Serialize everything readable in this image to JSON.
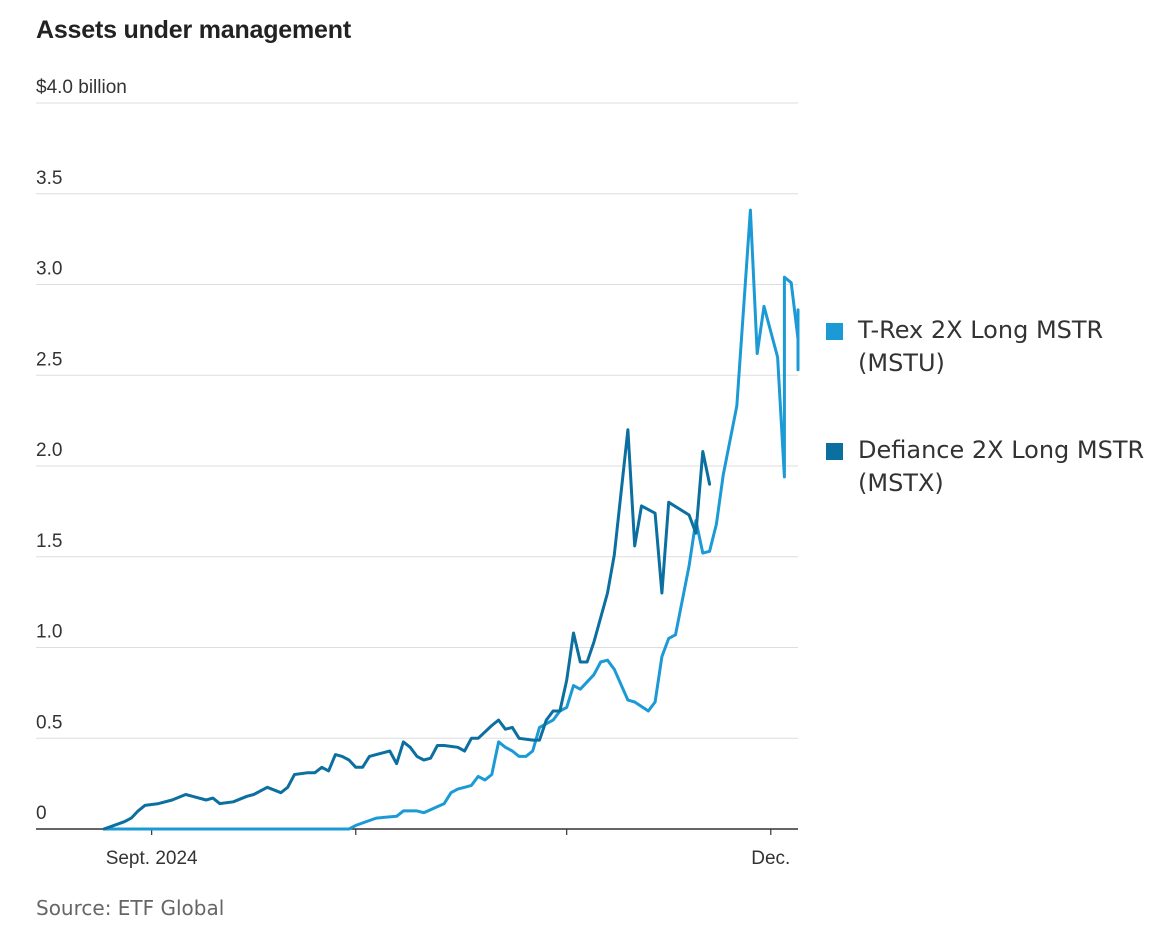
{
  "chart_data": {
    "type": "line",
    "title": "Assets under management",
    "xlabel": "",
    "ylabel": "",
    "ylim": [
      0,
      4.0
    ],
    "y_ticks": [
      {
        "value": 0,
        "label": "0"
      },
      {
        "value": 0.5,
        "label": "0.5"
      },
      {
        "value": 1.0,
        "label": "1.0"
      },
      {
        "value": 1.5,
        "label": "1.5"
      },
      {
        "value": 2.0,
        "label": "2.0"
      },
      {
        "value": 2.5,
        "label": "2.5"
      },
      {
        "value": 3.0,
        "label": "3.0"
      },
      {
        "value": 3.5,
        "label": "3.5"
      },
      {
        "value": 4.0,
        "label": "$4.0 billion"
      }
    ],
    "x_range": [
      "2024-08-15",
      "2024-12-05"
    ],
    "x_ticks": [
      {
        "date": "2024-09-01",
        "label": "Sept. 2024"
      },
      {
        "date": "2024-10-01",
        "label": ""
      },
      {
        "date": "2024-11-01",
        "label": ""
      },
      {
        "date": "2024-12-01",
        "label": "Dec."
      }
    ],
    "grid": true,
    "legend_position": "right",
    "source": "Source: ETF Global",
    "series": [
      {
        "name": "T-Rex 2X Long MSTR\n(MSTU)",
        "color": "#1b9ad6",
        "points": [
          [
            "2024-08-25",
            0
          ],
          [
            "2024-09-15",
            0
          ],
          [
            "2024-09-30",
            0
          ],
          [
            "2024-10-01",
            0.02
          ],
          [
            "2024-10-04",
            0.06
          ],
          [
            "2024-10-07",
            0.07
          ],
          [
            "2024-10-08",
            0.1
          ],
          [
            "2024-10-10",
            0.1
          ],
          [
            "2024-10-11",
            0.09
          ],
          [
            "2024-10-14",
            0.14
          ],
          [
            "2024-10-15",
            0.2
          ],
          [
            "2024-10-16",
            0.22
          ],
          [
            "2024-10-17",
            0.23
          ],
          [
            "2024-10-18",
            0.24
          ],
          [
            "2024-10-19",
            0.29
          ],
          [
            "2024-10-20",
            0.27
          ],
          [
            "2024-10-21",
            0.3
          ],
          [
            "2024-10-22",
            0.48
          ],
          [
            "2024-10-23",
            0.45
          ],
          [
            "2024-10-24",
            0.43
          ],
          [
            "2024-10-25",
            0.4
          ],
          [
            "2024-10-26",
            0.4
          ],
          [
            "2024-10-27",
            0.43
          ],
          [
            "2024-10-28",
            0.56
          ],
          [
            "2024-10-29",
            0.58
          ],
          [
            "2024-10-30",
            0.6
          ],
          [
            "2024-10-31",
            0.65
          ],
          [
            "2024-11-01",
            0.67
          ],
          [
            "2024-11-02",
            0.79
          ],
          [
            "2024-11-03",
            0.77
          ],
          [
            "2024-11-05",
            0.85
          ],
          [
            "2024-11-06",
            0.92
          ],
          [
            "2024-11-07",
            0.93
          ],
          [
            "2024-11-08",
            0.88
          ],
          [
            "2024-11-10",
            0.71
          ],
          [
            "2024-11-11",
            0.7
          ],
          [
            "2024-11-13",
            0.65
          ],
          [
            "2024-11-14",
            0.7
          ],
          [
            "2024-11-15",
            0.95
          ],
          [
            "2024-11-16",
            1.05
          ],
          [
            "2024-11-17",
            1.07
          ],
          [
            "2024-11-19",
            1.45
          ],
          [
            "2024-11-20",
            1.7
          ],
          [
            "2024-11-21",
            1.52
          ],
          [
            "2024-11-22",
            1.53
          ],
          [
            "2024-11-23",
            1.68
          ],
          [
            "2024-11-24",
            1.95
          ],
          [
            "2024-11-26",
            2.33
          ],
          [
            "2024-11-28",
            3.41
          ],
          [
            "2024-11-29",
            2.62
          ],
          [
            "2024-11-30",
            2.88
          ],
          [
            "2024-12-02",
            2.6
          ],
          [
            "2024-12-03",
            1.94
          ],
          [
            "2024-12-03",
            3.04
          ],
          [
            "2024-12-04",
            3.01
          ],
          [
            "2024-12-05",
            2.7
          ],
          [
            "2024-12-05",
            2.53
          ],
          [
            "2024-12-05",
            2.86
          ],
          [
            "2024-12-05",
            2.6
          ]
        ]
      },
      {
        "name": "Defiance 2X Long MSTR\n(MSTX)",
        "color": "#0b6fa0",
        "points": [
          [
            "2024-08-25",
            0
          ],
          [
            "2024-08-28",
            0.04
          ],
          [
            "2024-08-29",
            0.06
          ],
          [
            "2024-08-30",
            0.1
          ],
          [
            "2024-08-31",
            0.13
          ],
          [
            "2024-09-02",
            0.14
          ],
          [
            "2024-09-04",
            0.16
          ],
          [
            "2024-09-06",
            0.19
          ],
          [
            "2024-09-07",
            0.18
          ],
          [
            "2024-09-09",
            0.16
          ],
          [
            "2024-09-10",
            0.17
          ],
          [
            "2024-09-11",
            0.14
          ],
          [
            "2024-09-13",
            0.15
          ],
          [
            "2024-09-15",
            0.18
          ],
          [
            "2024-09-16",
            0.19
          ],
          [
            "2024-09-18",
            0.23
          ],
          [
            "2024-09-20",
            0.2
          ],
          [
            "2024-09-21",
            0.23
          ],
          [
            "2024-09-22",
            0.3
          ],
          [
            "2024-09-24",
            0.31
          ],
          [
            "2024-09-25",
            0.31
          ],
          [
            "2024-09-26",
            0.34
          ],
          [
            "2024-09-27",
            0.32
          ],
          [
            "2024-09-28",
            0.41
          ],
          [
            "2024-09-29",
            0.4
          ],
          [
            "2024-09-30",
            0.38
          ],
          [
            "2024-10-01",
            0.34
          ],
          [
            "2024-10-02",
            0.34
          ],
          [
            "2024-10-03",
            0.4
          ],
          [
            "2024-10-04",
            0.41
          ],
          [
            "2024-10-05",
            0.42
          ],
          [
            "2024-10-06",
            0.43
          ],
          [
            "2024-10-07",
            0.36
          ],
          [
            "2024-10-08",
            0.48
          ],
          [
            "2024-10-09",
            0.45
          ],
          [
            "2024-10-10",
            0.4
          ],
          [
            "2024-10-11",
            0.38
          ],
          [
            "2024-10-12",
            0.39
          ],
          [
            "2024-10-13",
            0.46
          ],
          [
            "2024-10-14",
            0.46
          ],
          [
            "2024-10-16",
            0.45
          ],
          [
            "2024-10-17",
            0.43
          ],
          [
            "2024-10-18",
            0.5
          ],
          [
            "2024-10-19",
            0.5
          ],
          [
            "2024-10-21",
            0.57
          ],
          [
            "2024-10-22",
            0.6
          ],
          [
            "2024-10-23",
            0.55
          ],
          [
            "2024-10-24",
            0.56
          ],
          [
            "2024-10-25",
            0.5
          ],
          [
            "2024-10-27",
            0.49
          ],
          [
            "2024-10-28",
            0.49
          ],
          [
            "2024-10-29",
            0.6
          ],
          [
            "2024-10-30",
            0.65
          ],
          [
            "2024-10-31",
            0.65
          ],
          [
            "2024-11-01",
            0.82
          ],
          [
            "2024-11-02",
            1.08
          ],
          [
            "2024-11-03",
            0.92
          ],
          [
            "2024-11-04",
            0.92
          ],
          [
            "2024-11-05",
            1.03
          ],
          [
            "2024-11-07",
            1.3
          ],
          [
            "2024-11-08",
            1.51
          ],
          [
            "2024-11-10",
            2.2
          ],
          [
            "2024-11-11",
            1.56
          ],
          [
            "2024-11-12",
            1.78
          ],
          [
            "2024-11-14",
            1.74
          ],
          [
            "2024-11-15",
            1.3
          ],
          [
            "2024-11-16",
            1.8
          ],
          [
            "2024-11-19",
            1.73
          ],
          [
            "2024-11-20",
            1.63
          ],
          [
            "2024-11-21",
            2.08
          ],
          [
            "2024-11-22",
            1.9
          ]
        ]
      }
    ]
  }
}
